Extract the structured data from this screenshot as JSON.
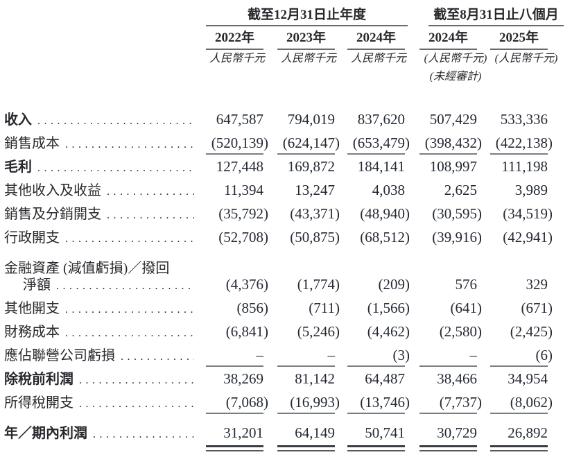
{
  "table": {
    "header": {
      "group1": "截至12月31日止年度",
      "group2": "截至8月31日止八個月",
      "columns": [
        {
          "year": "2022年",
          "unit": "人民幣千元",
          "note": ""
        },
        {
          "year": "2023年",
          "unit": "人民幣千元",
          "note": ""
        },
        {
          "year": "2024年",
          "unit": "人民幣千元",
          "note": ""
        },
        {
          "year": "2024年",
          "unit": "(人民幣千元)",
          "note": "(未經審計)"
        },
        {
          "year": "2025年",
          "unit": "(人民幣千元)",
          "note": ""
        }
      ]
    },
    "rows": [
      {
        "label": "收入",
        "bold": true,
        "leader": true,
        "values": [
          "647,587",
          "794,019",
          "837,620",
          "507,429",
          "533,336"
        ],
        "rule": "none"
      },
      {
        "label": "銷售成本",
        "bold": false,
        "leader": true,
        "values": [
          "(520,139)",
          "(624,147)",
          "(653,479)",
          "(398,432)",
          "(422,138)"
        ],
        "rule": "single"
      },
      {
        "label": "毛利",
        "bold": true,
        "leader": true,
        "values": [
          "127,448",
          "169,872",
          "184,141",
          "108,997",
          "111,198"
        ],
        "rule": "none"
      },
      {
        "label": "其他收入及收益",
        "bold": false,
        "leader": true,
        "values": [
          "11,394",
          "13,247",
          "4,038",
          "2,625",
          "3,989"
        ],
        "rule": "none"
      },
      {
        "label": "銷售及分銷開支",
        "bold": false,
        "leader": true,
        "values": [
          "(35,792)",
          "(43,371)",
          "(48,940)",
          "(30,595)",
          "(34,519)"
        ],
        "rule": "none"
      },
      {
        "label": "行政開支",
        "bold": false,
        "leader": true,
        "values": [
          "(52,708)",
          "(50,875)",
          "(68,512)",
          "(39,916)",
          "(42,941)"
        ],
        "rule": "none"
      },
      {
        "label": "金融資產 (減值虧損)／撥回",
        "bold": false,
        "leader": false,
        "values": [
          "",
          "",
          "",
          "",
          ""
        ],
        "rule": "none"
      },
      {
        "label": "淨額",
        "bold": false,
        "indent": true,
        "leader": true,
        "values": [
          "(4,376)",
          "(1,774)",
          "(209)",
          "576",
          "329"
        ],
        "rule": "none"
      },
      {
        "label": "其他開支",
        "bold": false,
        "leader": true,
        "values": [
          "(856)",
          "(711)",
          "(1,566)",
          "(641)",
          "(671)"
        ],
        "rule": "none"
      },
      {
        "label": "財務成本",
        "bold": false,
        "leader": true,
        "values": [
          "(6,841)",
          "(5,246)",
          "(4,462)",
          "(2,580)",
          "(2,425)"
        ],
        "rule": "none"
      },
      {
        "label": "應佔聯營公司虧損",
        "bold": false,
        "leader": true,
        "values": [
          "–",
          "–",
          "(3)",
          "–",
          "(6)"
        ],
        "rule": "single"
      },
      {
        "label": "除稅前利潤",
        "bold": true,
        "leader": true,
        "values": [
          "38,269",
          "81,142",
          "64,487",
          "38,466",
          "34,954"
        ],
        "rule": "none"
      },
      {
        "label": "所得稅開支",
        "bold": false,
        "leader": true,
        "values": [
          "(7,068)",
          "(16,993)",
          "(13,746)",
          "(7,737)",
          "(8,062)"
        ],
        "rule": "single"
      },
      {
        "label": "年／期內利潤",
        "bold": true,
        "leader": true,
        "gap_before": true,
        "values": [
          "31,201",
          "64,149",
          "50,741",
          "30,729",
          "26,892"
        ],
        "rule": "double"
      }
    ]
  },
  "colors": {
    "text": "#26282c",
    "number_text": "#242933",
    "thin_rule": "#7b7d81",
    "header_rule": "#696b6f",
    "double_rule_dark": "#3a3e45",
    "double_rule_light": "#55585d",
    "background": "#ffffff"
  }
}
